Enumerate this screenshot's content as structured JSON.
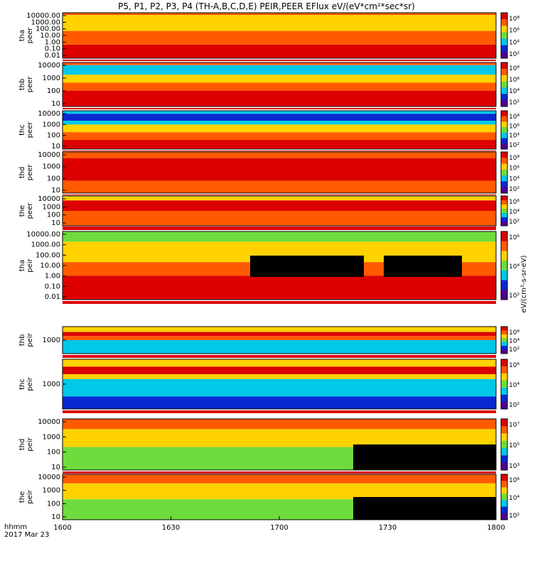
{
  "title": "P5, P1, P2, P3, P4 (TH-A,B,C,D,E) PEIR,PEER EFlux eV/(eV*cm²*sec*sr)",
  "colors": {
    "red": "#dd0000",
    "orange": "#ff5a00",
    "yellow": "#ffd200",
    "green": "#6edc3c",
    "cyan": "#00c8e6",
    "blue": "#0a28d2",
    "black": "#000000"
  },
  "chart_data": {
    "type": "heatmap",
    "x_ticks": [
      "1600",
      "1630",
      "1700",
      "1730",
      "1800"
    ],
    "x_range": [
      "16:00",
      "18:00"
    ],
    "footer": {
      "format": "hhmm",
      "date": "2017 Mar 23"
    },
    "colorbar_label": "eV/(cm²-s-sr-eV)",
    "panels": [
      {
        "id": "tha-peer",
        "label": "tha\npeer",
        "y_ticks": [
          "10000.00",
          "1000.00",
          "100.00",
          "10.00",
          "1.00",
          "0.10",
          "0.01"
        ],
        "log_scale": true,
        "cbar_ticks": [
          "10⁸",
          "10⁶",
          "10⁴",
          "10²"
        ]
      },
      {
        "id": "thb-peer",
        "label": "thb\npeer",
        "y_ticks": [
          "10000",
          "1000",
          "100",
          "10"
        ],
        "log_scale": true,
        "cbar_ticks": [
          "10⁸",
          "10⁶",
          "10⁴",
          "10²"
        ]
      },
      {
        "id": "thc-peer",
        "label": "thc\npeer",
        "y_ticks": [
          "10000",
          "1000",
          "100",
          "10"
        ],
        "log_scale": true,
        "cbar_ticks": [
          "10⁸",
          "10⁶",
          "10⁴",
          "10²"
        ]
      },
      {
        "id": "thd-peer",
        "label": "thd\npeer",
        "y_ticks": [
          "10000",
          "1000",
          "100",
          "10"
        ],
        "log_scale": true,
        "cbar_ticks": [
          "10⁸",
          "10⁶",
          "10⁴",
          "10²"
        ]
      },
      {
        "id": "the-peer",
        "label": "the\npeer",
        "y_ticks": [
          "10000",
          "1000",
          "100",
          "10"
        ],
        "log_scale": true,
        "cbar_ticks": [
          "10⁶",
          "10⁴",
          "10²"
        ]
      },
      {
        "id": "tha-peir",
        "label": "tha\npeir",
        "y_ticks": [
          "10000.00",
          "1000.00",
          "100.00",
          "10.00",
          "1.00",
          "0.10",
          "0.01"
        ],
        "log_scale": true,
        "cbar_ticks": [
          "10⁶",
          "10⁴",
          "10²"
        ]
      },
      {
        "id": "thb-peir",
        "label": "thb\npeir",
        "y_ticks": [
          "1000"
        ],
        "log_scale": true,
        "cbar_ticks": [
          "10⁶",
          "10⁴",
          "10²"
        ]
      },
      {
        "id": "thc-peir",
        "label": "thc\npeir",
        "y_ticks": [
          "1000"
        ],
        "log_scale": true,
        "cbar_ticks": [
          "10⁶",
          "10⁴",
          "10²"
        ]
      },
      {
        "id": "thd-peir",
        "label": "thd\npeir",
        "y_ticks": [
          "10000",
          "1000",
          "100",
          "10"
        ],
        "log_scale": true,
        "cbar_ticks": [
          "10⁷",
          "10⁵",
          "10³"
        ]
      },
      {
        "id": "the-peir",
        "label": "the\npeir",
        "y_ticks": [
          "10000",
          "1000",
          "100",
          "10"
        ],
        "log_scale": true,
        "cbar_ticks": [
          "10⁶",
          "10⁴",
          "10²"
        ]
      }
    ]
  }
}
